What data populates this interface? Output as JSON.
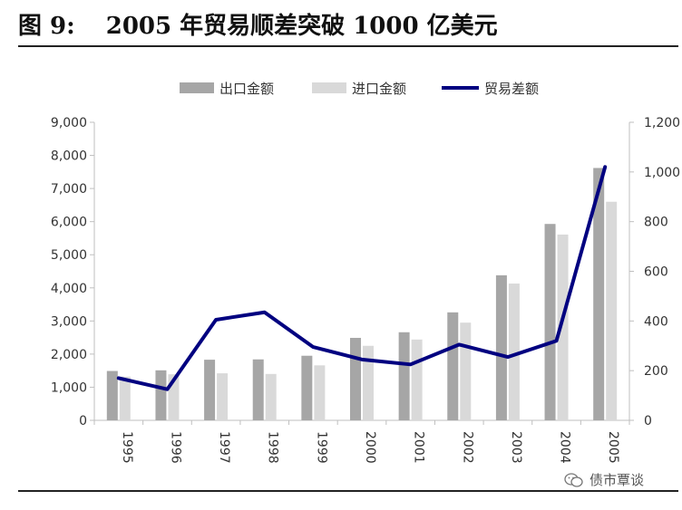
{
  "header": {
    "figure_label": "图 9:",
    "title": "2005 年贸易顺差突破 1000 亿美元"
  },
  "watermark": {
    "text": "债市覃谈",
    "icon": "wechat-icon"
  },
  "colors": {
    "export": "#a6a6a6",
    "import": "#d9d9d9",
    "balance": "#000080"
  },
  "chart_data": {
    "type": "bar",
    "categories": [
      "1995",
      "1996",
      "1997",
      "1998",
      "1999",
      "2000",
      "2001",
      "2002",
      "2003",
      "2004",
      "2005"
    ],
    "series": [
      {
        "name": "出口金额",
        "type": "bar",
        "axis": "left",
        "values": [
          1490,
          1510,
          1830,
          1840,
          1950,
          2490,
          2660,
          3260,
          4380,
          5930,
          7620
        ]
      },
      {
        "name": "进口金额",
        "type": "bar",
        "axis": "left",
        "values": [
          1320,
          1390,
          1420,
          1400,
          1660,
          2250,
          2440,
          2950,
          4130,
          5610,
          6600
        ]
      },
      {
        "name": "贸易差额",
        "type": "line",
        "axis": "right",
        "values": [
          170,
          125,
          405,
          435,
          295,
          245,
          225,
          305,
          255,
          320,
          1020
        ]
      }
    ],
    "ylim": [
      0,
      9000
    ],
    "y2lim": [
      0,
      1200
    ],
    "yticks": [
      "0",
      "1,000",
      "2,000",
      "3,000",
      "4,000",
      "5,000",
      "6,000",
      "7,000",
      "8,000",
      "9,000"
    ],
    "y2ticks": [
      "0",
      "200",
      "400",
      "600",
      "800",
      "1,000",
      "1,200"
    ],
    "legend": {
      "position": "top",
      "items": [
        "出口金额",
        "进口金额",
        "贸易差额"
      ]
    },
    "grid": false
  }
}
